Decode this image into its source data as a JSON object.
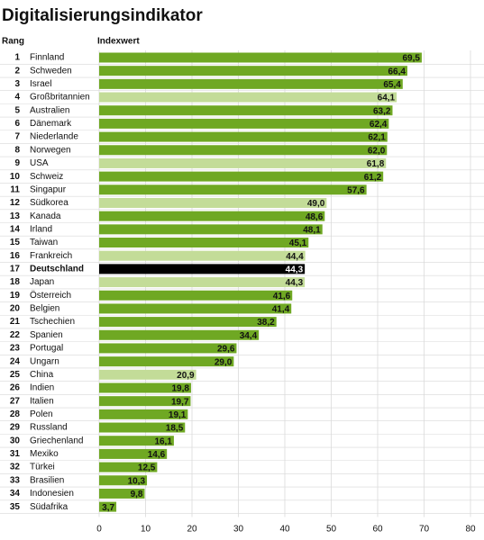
{
  "chart_data": {
    "type": "bar",
    "orientation": "horizontal",
    "title": "Digitalisierungsindikator",
    "rank_header": "Rang",
    "xlabel": "Indexwert",
    "ranks": [
      1,
      2,
      3,
      4,
      5,
      6,
      7,
      8,
      9,
      10,
      11,
      12,
      13,
      14,
      15,
      16,
      17,
      18,
      19,
      20,
      21,
      22,
      23,
      24,
      25,
      26,
      27,
      28,
      29,
      30,
      31,
      32,
      33,
      34,
      35
    ],
    "categories": [
      "Finnland",
      "Schweden",
      "Israel",
      "Großbritannien",
      "Australien",
      "Dänemark",
      "Niederlande",
      "Norwegen",
      "USA",
      "Schweiz",
      "Singapur",
      "Südkorea",
      "Kanada",
      "Irland",
      "Taiwan",
      "Frankreich",
      "Deutschland",
      "Japan",
      "Österreich",
      "Belgien",
      "Tschechien",
      "Spanien",
      "Portugal",
      "Ungarn",
      "China",
      "Indien",
      "Italien",
      "Polen",
      "Russland",
      "Griechenland",
      "Mexiko",
      "Türkei",
      "Brasilien",
      "Indonesien",
      "Südafrika"
    ],
    "values": [
      69.5,
      66.4,
      65.4,
      64.1,
      63.2,
      62.4,
      62.1,
      62.0,
      61.8,
      61.2,
      57.6,
      49.0,
      48.6,
      48.1,
      45.1,
      44.4,
      44.3,
      44.3,
      41.6,
      41.4,
      38.2,
      34.4,
      29.6,
      29.0,
      20.9,
      19.8,
      19.7,
      19.1,
      18.5,
      16.1,
      14.6,
      12.5,
      10.3,
      9.8,
      3.7
    ],
    "value_labels": [
      "69,5",
      "66,4",
      "65,4",
      "64,1",
      "63,2",
      "62,4",
      "62,1",
      "62,0",
      "61,8",
      "61,2",
      "57,6",
      "49,0",
      "48,6",
      "48,1",
      "45,1",
      "44,4",
      "44,3",
      "44,3",
      "41,6",
      "41,4",
      "38,2",
      "34,4",
      "29,6",
      "29,0",
      "20,9",
      "19,8",
      "19,7",
      "19,1",
      "18,5",
      "16,1",
      "14,6",
      "12,5",
      "10,3",
      "9,8",
      "3,7"
    ],
    "colors": [
      "#6fa823",
      "#6fa823",
      "#6fa823",
      "#c3dc98",
      "#6fa823",
      "#6fa823",
      "#6fa823",
      "#6fa823",
      "#c3dc98",
      "#6fa823",
      "#6fa823",
      "#c3dc98",
      "#6fa823",
      "#6fa823",
      "#6fa823",
      "#c3dc98",
      "#000000",
      "#c3dc98",
      "#6fa823",
      "#6fa823",
      "#6fa823",
      "#6fa823",
      "#6fa823",
      "#6fa823",
      "#c3dc98",
      "#6fa823",
      "#6fa823",
      "#6fa823",
      "#6fa823",
      "#6fa823",
      "#6fa823",
      "#6fa823",
      "#6fa823",
      "#6fa823",
      "#6fa823"
    ],
    "xlim": [
      0,
      80
    ],
    "xticks": [
      0,
      10,
      20,
      30,
      40,
      50,
      60,
      70,
      80
    ],
    "grid": true
  }
}
